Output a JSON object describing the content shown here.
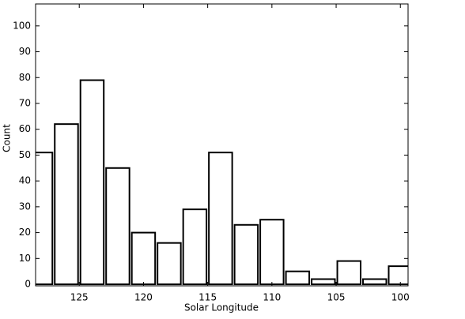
{
  "chart_data": {
    "type": "histogram",
    "x_label": "Solar Longitude",
    "y_label": "Count",
    "bins": [
      129,
      127,
      125,
      123,
      121,
      119,
      117,
      115,
      113,
      111,
      109,
      107,
      105,
      103,
      101,
      99
    ],
    "values": [
      51,
      62,
      79,
      45,
      20,
      16,
      29,
      51,
      23,
      25,
      5,
      2,
      9,
      2,
      7
    ],
    "color": "#ffffff",
    "edgecolor": "#000000",
    "xlim": [
      128.4,
      99.4
    ],
    "xticks": [
      125,
      120,
      115,
      110,
      105,
      100
    ],
    "ylim": [
      -0.6,
      108.5
    ],
    "yticks": [
      0,
      10,
      20,
      30,
      40,
      50,
      60,
      70,
      80,
      90,
      100
    ]
  }
}
